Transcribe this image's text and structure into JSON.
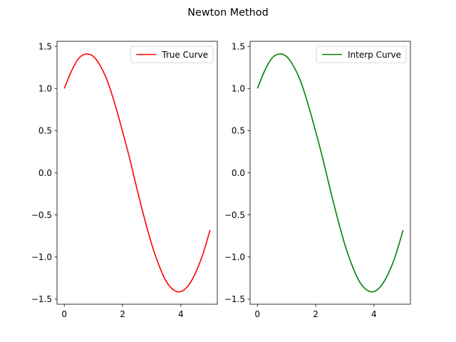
{
  "figure": {
    "title": "Newton Method"
  },
  "chart_data": [
    {
      "type": "line",
      "title": "",
      "xlabel": "",
      "ylabel": "",
      "xlim": [
        -0.25,
        5.25
      ],
      "ylim": [
        -1.56,
        1.56
      ],
      "xticks": [
        0,
        2,
        4
      ],
      "xtick_labels": [
        "0",
        "2",
        "4"
      ],
      "yticks": [
        -1.5,
        -1.0,
        -0.5,
        0.0,
        0.5,
        1.0,
        1.5
      ],
      "ytick_labels": [
        "−1.5",
        "−1.0",
        "−0.5",
        "0.0",
        "0.5",
        "1.0",
        "1.5"
      ],
      "grid": false,
      "legend_position": "upper right",
      "series": [
        {
          "name": "True Curve",
          "color": "#ff0000",
          "x": [
            0,
            0.25,
            0.5,
            0.75,
            1.0,
            1.25,
            1.5,
            1.75,
            2.0,
            2.25,
            2.5,
            2.75,
            3.0,
            3.25,
            3.5,
            3.75,
            4.0,
            4.25,
            4.5,
            4.75,
            5.0
          ],
          "y": [
            1.0,
            1.21,
            1.36,
            1.41,
            1.38,
            1.26,
            1.07,
            0.8,
            0.49,
            0.16,
            -0.2,
            -0.54,
            -0.85,
            -1.1,
            -1.29,
            -1.39,
            -1.41,
            -1.34,
            -1.19,
            -0.97,
            -0.68
          ]
        }
      ]
    },
    {
      "type": "line",
      "title": "",
      "xlabel": "",
      "ylabel": "",
      "xlim": [
        -0.25,
        5.25
      ],
      "ylim": [
        -1.56,
        1.56
      ],
      "xticks": [
        0,
        2,
        4
      ],
      "xtick_labels": [
        "0",
        "2",
        "4"
      ],
      "yticks": [
        -1.5,
        -1.0,
        -0.5,
        0.0,
        0.5,
        1.0,
        1.5
      ],
      "ytick_labels": [
        "−1.5",
        "−1.0",
        "−0.5",
        "0.0",
        "0.5",
        "1.0",
        "1.5"
      ],
      "grid": false,
      "legend_position": "upper right",
      "series": [
        {
          "name": "Interp Curve",
          "color": "#008000",
          "x": [
            0,
            0.25,
            0.5,
            0.75,
            1.0,
            1.25,
            1.5,
            1.75,
            2.0,
            2.25,
            2.5,
            2.75,
            3.0,
            3.25,
            3.5,
            3.75,
            4.0,
            4.25,
            4.5,
            4.75,
            5.0
          ],
          "y": [
            1.0,
            1.21,
            1.36,
            1.41,
            1.38,
            1.26,
            1.07,
            0.8,
            0.49,
            0.16,
            -0.2,
            -0.54,
            -0.85,
            -1.1,
            -1.29,
            -1.39,
            -1.41,
            -1.34,
            -1.19,
            -0.97,
            -0.68
          ]
        }
      ]
    }
  ]
}
